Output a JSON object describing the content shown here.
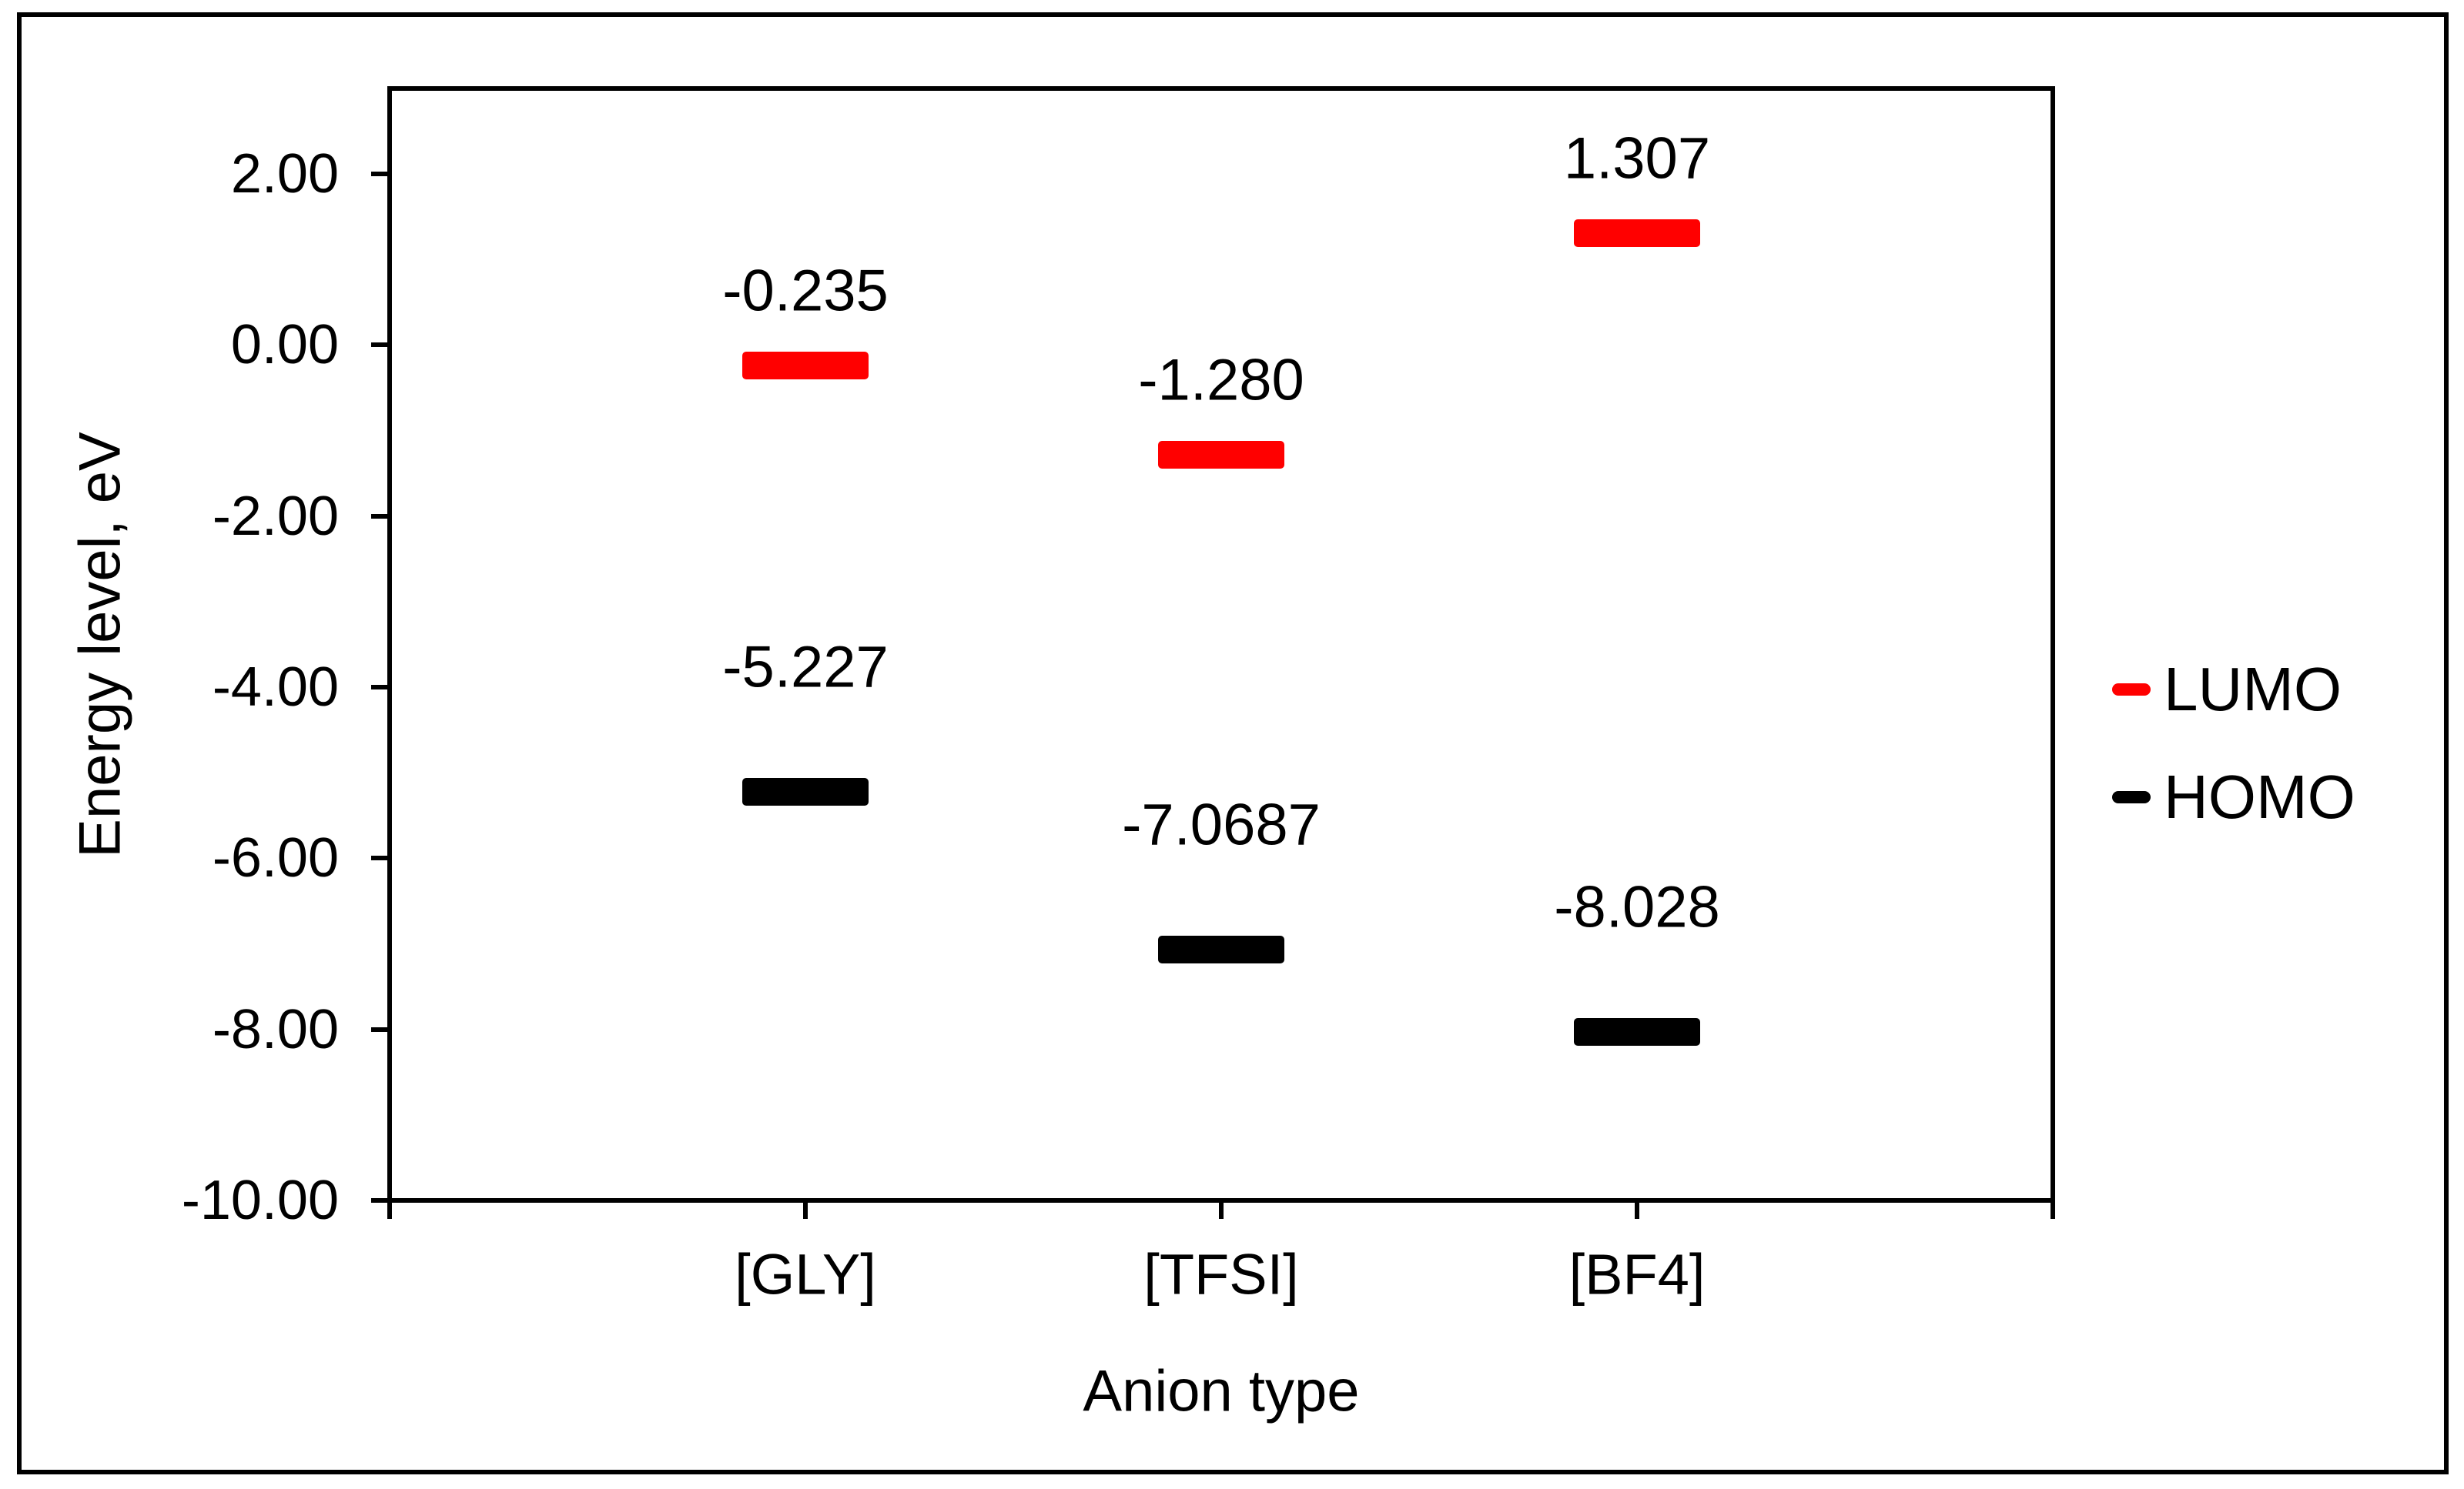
{
  "figure": {
    "background": "#ffffff",
    "border_color": "#000000"
  },
  "chart_data": {
    "type": "scatter",
    "marker_style": "horizontal-dash",
    "title": "",
    "xlabel": "Anion type",
    "ylabel": "Energy level, eV",
    "categories": [
      "[GLY]",
      "[TFSI]",
      "[BF4]"
    ],
    "series": [
      {
        "name": "LUMO",
        "color": "#FF0000",
        "values": [
          -0.235,
          -1.28,
          1.307
        ],
        "labels": [
          "-0.235",
          "-1.280",
          "1.307"
        ],
        "label_position": "above"
      },
      {
        "name": "HOMO",
        "color": "#000000",
        "values": [
          -5.227,
          -7.0687,
          -8.028
        ],
        "labels": [
          "-5.227",
          "-7.0687",
          "-8.028"
        ],
        "label_position": "above"
      }
    ],
    "ylim": [
      -10.0,
      3.0
    ],
    "ytick_values": [
      2,
      0,
      -2,
      -4,
      -6,
      -8,
      -10
    ],
    "ytick_labels": [
      "2.00",
      "0.00",
      "-2.00",
      "-4.00",
      "-6.00",
      "-8.00",
      "-10.00"
    ],
    "grid": false,
    "legend": {
      "position": "right",
      "entries": [
        "LUMO",
        "HOMO"
      ],
      "colors": [
        "#FF0000",
        "#000000"
      ]
    }
  }
}
